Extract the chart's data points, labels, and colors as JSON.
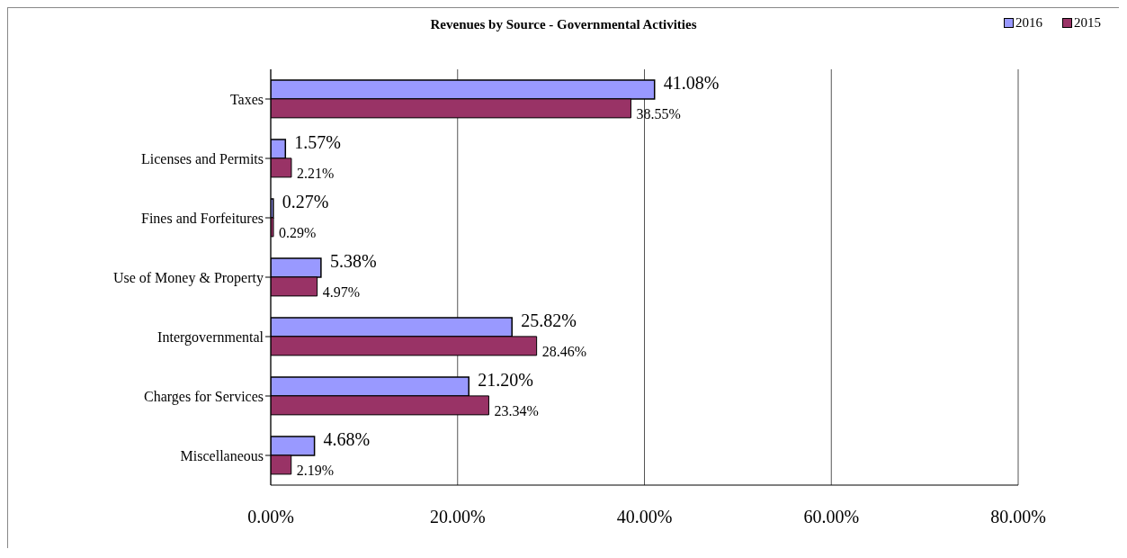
{
  "chart_data": {
    "type": "bar",
    "orientation": "horizontal",
    "title": "Revenues by Source - Governmental Activities",
    "categories": [
      "Taxes",
      "Licenses and Permits",
      "Fines and Forfeitures",
      "Use of Money & Property",
      "Intergovernmental",
      "Charges for Services",
      "Miscellaneous"
    ],
    "series": [
      {
        "name": "2016",
        "color": "#9999ff",
        "values": [
          41.08,
          1.57,
          0.27,
          5.38,
          25.82,
          21.2,
          4.68
        ],
        "value_labels": [
          "41.08%",
          "1.57%",
          "0.27%",
          "5.38%",
          "25.82%",
          "21.20%",
          "4.68%"
        ]
      },
      {
        "name": "2015",
        "color": "#993366",
        "values": [
          38.55,
          2.21,
          0.29,
          4.97,
          28.46,
          23.34,
          2.19
        ],
        "value_labels": [
          "38.55%",
          "2.21%",
          "0.29%",
          "4.97%",
          "28.46%",
          "23.34%",
          "2.19%"
        ]
      }
    ],
    "xlim": [
      0,
      80
    ],
    "xticks": [
      {
        "value": 0,
        "label": "0.00%"
      },
      {
        "value": 20,
        "label": "20.00%"
      },
      {
        "value": 40,
        "label": "40.00%"
      },
      {
        "value": 60,
        "label": "60.00%"
      },
      {
        "value": 80,
        "label": "80.00%"
      }
    ],
    "grid": "x",
    "legend": "top right"
  }
}
